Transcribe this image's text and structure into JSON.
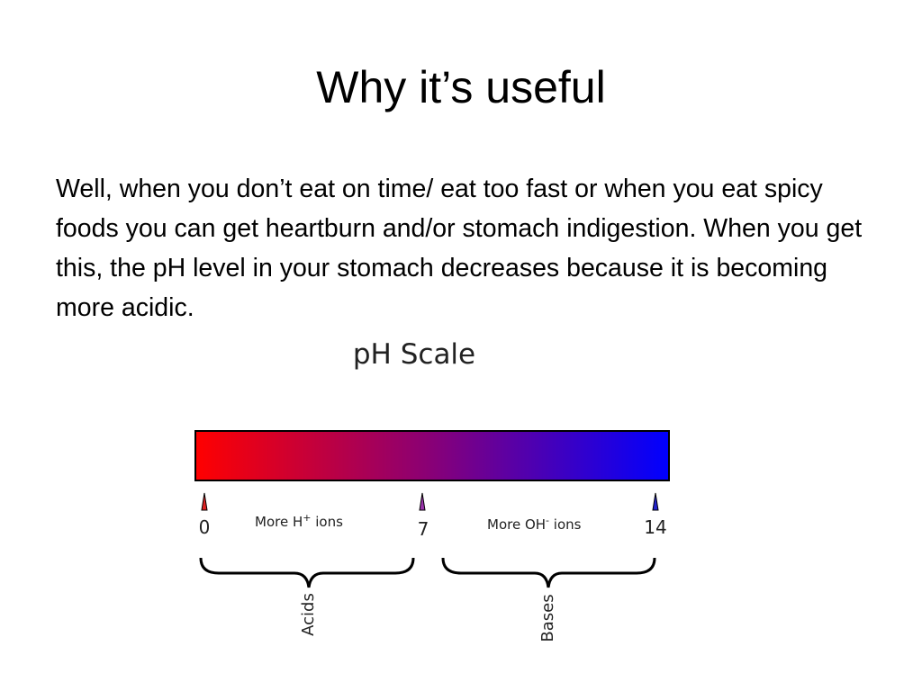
{
  "slide": {
    "title": "Why it’s useful",
    "body": "Well, when you don’t eat on time/ eat too fast or when you eat spicy foods you can get heartburn and/or stomach indigestion. When you get this, the pH level in your stomach decreases because it is becoming more acidic."
  },
  "figure": {
    "title": "pH Scale",
    "gradient": {
      "start_color": "#ff0000",
      "end_color": "#0000ff"
    },
    "markers": [
      {
        "label": "0",
        "color": "#dd2222"
      },
      {
        "label": "7",
        "color": "#9933aa"
      },
      {
        "label": "14",
        "color": "#2222cc"
      }
    ],
    "regions": [
      {
        "ion_text_main": "More H",
        "ion_sup": "+",
        "ion_text_end": " ions",
        "group_label": "Acids"
      },
      {
        "ion_text_main": "More OH",
        "ion_sup": "-",
        "ion_text_end": " ions",
        "group_label": "Bases"
      }
    ]
  }
}
